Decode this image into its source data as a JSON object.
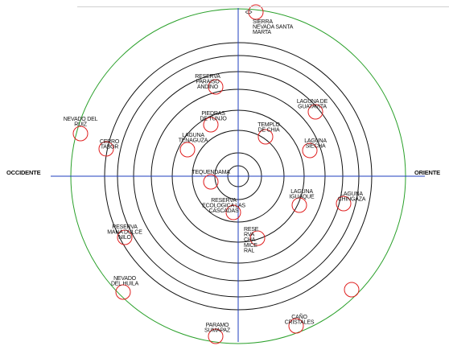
{
  "colors": {
    "rings": "#111111",
    "outer_ring": "#2aa02a",
    "axes": "#1f3fbf",
    "markers": "#e02020"
  },
  "directions": {
    "west": "OCCIDENTE",
    "east": "ORIENTE"
  },
  "places": [
    {
      "id": "sierra-nevada",
      "lines": [
        "SIERRA",
        "NEVADA SANTA",
        "MARTA"
      ]
    },
    {
      "id": "reserva-paraiso",
      "lines": [
        "RESERVA",
        "PARAISO",
        "ANDINO"
      ]
    },
    {
      "id": "laguna-guatavita",
      "lines": [
        "LAGUNA DE",
        "GUATAVITA"
      ]
    },
    {
      "id": "nevado-ruiz",
      "lines": [
        "NEVADO DEL",
        "RUIZ"
      ]
    },
    {
      "id": "piedras-tunjo",
      "lines": [
        "PIEDRAS",
        "DE TUNJO"
      ]
    },
    {
      "id": "templo-chia",
      "lines": [
        "TEMPLO",
        "DE CHIA"
      ]
    },
    {
      "id": "cerro-tabor",
      "lines": [
        "CERRO",
        "TABOR"
      ]
    },
    {
      "id": "laguna-tenaguza",
      "lines": [
        "LAGUNA",
        "TENAGUZA"
      ]
    },
    {
      "id": "laguna-siecha",
      "lines": [
        "LAGUNA",
        "SIECHA"
      ]
    },
    {
      "id": "tequendama",
      "lines": [
        "TEQUENDAMA"
      ]
    },
    {
      "id": "laguna-iguaque",
      "lines": [
        "LAGUNA",
        "IGUAQUE"
      ]
    },
    {
      "id": "laguna-chingaza",
      "lines": [
        "LAGUNA",
        "CHINGAZA"
      ]
    },
    {
      "id": "reserva-cascadas",
      "lines": [
        "RESERVA",
        "ECOLOGICA LAS",
        "CASCADAS"
      ]
    },
    {
      "id": "reserva-mana",
      "lines": [
        "RESERVA",
        "MANA DULCE",
        "NILO"
      ]
    },
    {
      "id": "reserva-chamiceral",
      "lines": [
        "RESE",
        "RVA",
        "CHA",
        "MICE",
        "RAL"
      ]
    },
    {
      "id": "nevado-huila",
      "lines": [
        "NEVADO",
        "DEL HUILA"
      ]
    },
    {
      "id": "cano-cristales",
      "lines": [
        "CAÑO",
        "CRISTALES"
      ]
    },
    {
      "id": "paramo-sumapaz",
      "lines": [
        "PARAMO",
        "SUMAPAZ"
      ]
    },
    {
      "id": "unlabeled-east",
      "lines": []
    }
  ]
}
